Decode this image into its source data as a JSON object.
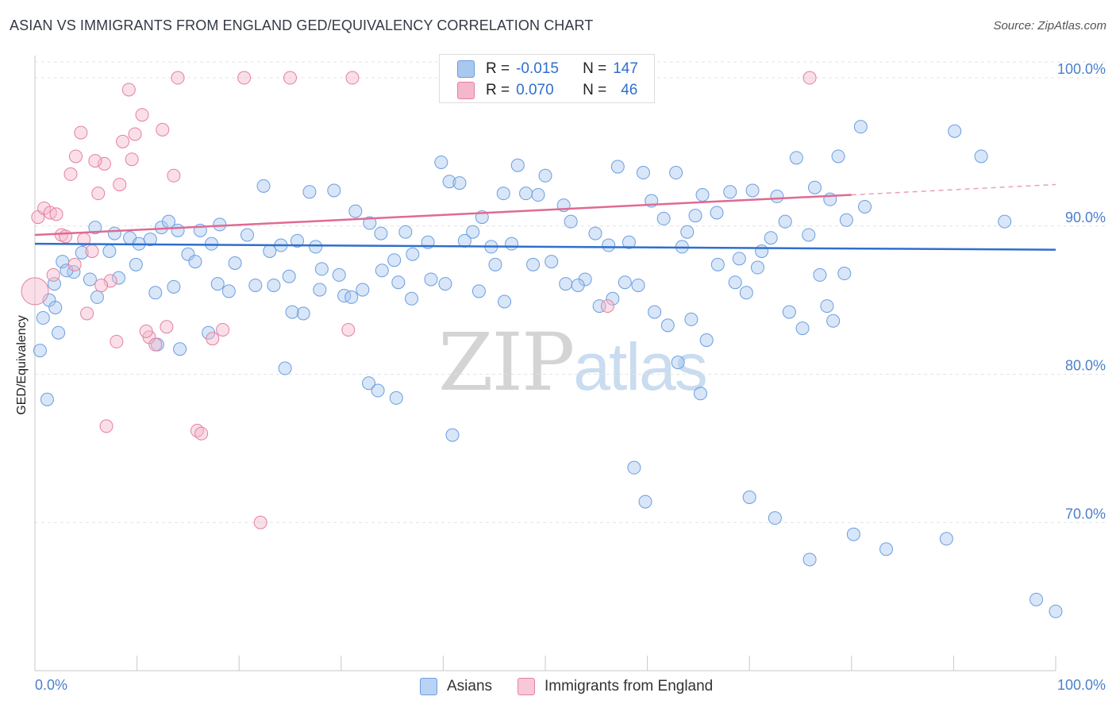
{
  "title": "ASIAN VS IMMIGRANTS FROM ENGLAND GED/EQUIVALENCY CORRELATION CHART",
  "source": "Source: ZipAtlas.com",
  "watermark": {
    "zip": "ZIP",
    "atlas": "atlas"
  },
  "legend": {
    "r_key": "R =",
    "n_key": "N =",
    "rows": [
      {
        "r": "-0.015",
        "n": "147",
        "color": "#a8c8f0",
        "border": "#6a9ee0"
      },
      {
        "r": "0.070",
        "n": "46",
        "color": "#f5b7cb",
        "border": "#e5809f"
      }
    ]
  },
  "bottom_legend": [
    {
      "label": "Asians",
      "color": "#b8d3f3",
      "border": "#6a9ee0"
    },
    {
      "label": "Immigrants from England",
      "color": "#f8c8d8",
      "border": "#e5809f"
    }
  ],
  "chart_data": {
    "type": "scatter",
    "title": "ASIAN VS IMMIGRANTS FROM ENGLAND GED/EQUIVALENCY CORRELATION CHART",
    "xlabel": "",
    "ylabel": "GED/Equivalency",
    "xlim": [
      0,
      100
    ],
    "ylim": [
      60,
      101.5
    ],
    "x_tick_labels": [
      "0.0%",
      "100.0%"
    ],
    "y_ticks": [
      {
        "value": 100,
        "label": "100.0%"
      },
      {
        "value": 90,
        "label": "90.0%"
      },
      {
        "value": 80,
        "label": "80.0%"
      },
      {
        "value": 70,
        "label": "70.0%"
      }
    ],
    "grid": true,
    "series": [
      {
        "name": "Asians",
        "color": "#6a9ee0",
        "fill": "rgba(168,200,240,0.45)",
        "trend": {
          "x0": 0,
          "y0": 88.8,
          "x1": 100,
          "y1": 88.4
        },
        "points": [
          [
            0.5,
            81.6
          ],
          [
            0.8,
            83.8
          ],
          [
            1.4,
            85.0
          ],
          [
            1.9,
            86.1
          ],
          [
            2.7,
            87.6
          ],
          [
            3.8,
            86.9
          ],
          [
            5.4,
            86.4
          ],
          [
            6.1,
            85.2
          ],
          [
            7.3,
            88.3
          ],
          [
            8.2,
            86.5
          ],
          [
            9.3,
            89.2
          ],
          [
            10.2,
            88.8
          ],
          [
            11.3,
            89.1
          ],
          [
            12.4,
            89.9
          ],
          [
            13.1,
            90.3
          ],
          [
            14.0,
            89.7
          ],
          [
            15.0,
            88.1
          ],
          [
            16.2,
            89.7
          ],
          [
            17.3,
            88.8
          ],
          [
            18.1,
            90.1
          ],
          [
            19.6,
            87.5
          ],
          [
            20.8,
            89.4
          ],
          [
            22.4,
            92.7
          ],
          [
            23.4,
            86.0
          ],
          [
            24.1,
            88.7
          ],
          [
            25.7,
            89.0
          ],
          [
            26.9,
            92.3
          ],
          [
            27.5,
            88.6
          ],
          [
            28.1,
            87.1
          ],
          [
            29.3,
            92.4
          ],
          [
            30.3,
            85.3
          ],
          [
            31.4,
            91.0
          ],
          [
            32.8,
            90.2
          ],
          [
            33.9,
            89.5
          ],
          [
            35.2,
            87.7
          ],
          [
            36.3,
            89.6
          ],
          [
            37.0,
            88.1
          ],
          [
            38.5,
            88.9
          ],
          [
            39.8,
            94.3
          ],
          [
            40.6,
            93.0
          ],
          [
            41.6,
            92.9
          ],
          [
            42.9,
            89.6
          ],
          [
            43.8,
            90.6
          ],
          [
            44.7,
            88.6
          ],
          [
            45.9,
            92.2
          ],
          [
            47.3,
            94.1
          ],
          [
            48.1,
            92.2
          ],
          [
            49.3,
            92.1
          ],
          [
            50.0,
            93.4
          ],
          [
            51.8,
            91.4
          ],
          [
            52.5,
            90.3
          ],
          [
            53.9,
            86.4
          ],
          [
            54.9,
            89.5
          ],
          [
            56.2,
            88.7
          ],
          [
            57.1,
            94.0
          ],
          [
            58.2,
            88.9
          ],
          [
            59.6,
            93.6
          ],
          [
            60.4,
            91.7
          ],
          [
            61.6,
            90.5
          ],
          [
            62.8,
            93.6
          ],
          [
            63.9,
            89.6
          ],
          [
            64.7,
            90.7
          ],
          [
            65.4,
            92.1
          ],
          [
            66.8,
            90.9
          ],
          [
            68.1,
            92.3
          ],
          [
            69.0,
            87.8
          ],
          [
            70.3,
            92.4
          ],
          [
            71.2,
            88.3
          ],
          [
            72.7,
            92.0
          ],
          [
            73.5,
            90.3
          ],
          [
            74.6,
            94.6
          ],
          [
            75.8,
            89.4
          ],
          [
            76.4,
            92.6
          ],
          [
            77.9,
            91.8
          ],
          [
            78.7,
            94.7
          ],
          [
            79.5,
            90.4
          ],
          [
            80.9,
            96.7
          ],
          [
            81.3,
            91.3
          ],
          [
            2.0,
            84.5
          ],
          [
            3.1,
            87.0
          ],
          [
            4.6,
            88.2
          ],
          [
            5.9,
            89.9
          ],
          [
            7.8,
            89.5
          ],
          [
            9.9,
            87.4
          ],
          [
            11.8,
            85.5
          ],
          [
            13.6,
            85.9
          ],
          [
            15.7,
            87.6
          ],
          [
            17.9,
            86.1
          ],
          [
            19.0,
            85.6
          ],
          [
            21.6,
            86.0
          ],
          [
            23.0,
            88.3
          ],
          [
            24.9,
            86.6
          ],
          [
            26.3,
            84.1
          ],
          [
            27.9,
            85.7
          ],
          [
            29.8,
            86.7
          ],
          [
            31.0,
            85.2
          ],
          [
            32.1,
            85.7
          ],
          [
            34.0,
            87.0
          ],
          [
            35.6,
            86.2
          ],
          [
            36.9,
            85.1
          ],
          [
            38.8,
            86.4
          ],
          [
            40.2,
            86.1
          ],
          [
            42.1,
            89.0
          ],
          [
            43.5,
            85.6
          ],
          [
            45.1,
            87.4
          ],
          [
            46.7,
            88.8
          ],
          [
            48.8,
            87.4
          ],
          [
            50.6,
            87.6
          ],
          [
            52.0,
            86.1
          ],
          [
            53.2,
            86.0
          ],
          [
            55.3,
            84.6
          ],
          [
            56.6,
            85.1
          ],
          [
            57.8,
            86.2
          ],
          [
            59.1,
            86.0
          ],
          [
            60.7,
            84.2
          ],
          [
            62.0,
            83.3
          ],
          [
            63.4,
            88.6
          ],
          [
            64.3,
            83.7
          ],
          [
            65.8,
            82.3
          ],
          [
            66.9,
            87.4
          ],
          [
            68.6,
            86.2
          ],
          [
            69.7,
            85.5
          ],
          [
            70.8,
            87.2
          ],
          [
            72.1,
            89.2
          ],
          [
            73.9,
            84.2
          ],
          [
            75.2,
            83.1
          ],
          [
            76.9,
            86.7
          ],
          [
            77.6,
            84.6
          ],
          [
            78.2,
            83.6
          ],
          [
            79.3,
            86.8
          ],
          [
            1.2,
            78.3
          ],
          [
            2.3,
            82.8
          ],
          [
            12.0,
            82.0
          ],
          [
            14.2,
            81.7
          ],
          [
            17.0,
            82.8
          ],
          [
            24.5,
            80.4
          ],
          [
            25.2,
            84.2
          ],
          [
            32.7,
            79.4
          ],
          [
            33.6,
            78.9
          ],
          [
            35.4,
            78.4
          ],
          [
            40.9,
            75.9
          ],
          [
            46.0,
            84.9
          ],
          [
            58.7,
            73.7
          ],
          [
            59.8,
            71.4
          ],
          [
            63.0,
            80.8
          ],
          [
            65.2,
            78.7
          ],
          [
            70.0,
            71.7
          ],
          [
            72.5,
            70.3
          ],
          [
            75.9,
            67.5
          ],
          [
            80.2,
            69.2
          ],
          [
            83.4,
            68.2
          ],
          [
            89.3,
            68.9
          ],
          [
            90.1,
            96.4
          ],
          [
            92.7,
            94.7
          ],
          [
            95.0,
            90.3
          ],
          [
            98.1,
            64.8
          ],
          [
            100.0,
            64.0
          ]
        ]
      },
      {
        "name": "Immigrants from England",
        "color": "#e5809f",
        "fill": "rgba(245,183,203,0.45)",
        "trend": {
          "x0": 0,
          "y0": 89.4,
          "x1": 80,
          "y1": 92.1
        },
        "trend_dashed": {
          "x0": 80,
          "y0": 92.1,
          "x1": 100,
          "y1": 92.8
        },
        "points": [
          [
            0.0,
            85.6
          ],
          [
            0.3,
            90.6
          ],
          [
            0.9,
            91.2
          ],
          [
            1.5,
            90.9
          ],
          [
            2.1,
            90.8
          ],
          [
            2.6,
            89.4
          ],
          [
            3.0,
            89.3
          ],
          [
            3.5,
            93.5
          ],
          [
            4.0,
            94.7
          ],
          [
            4.5,
            96.3
          ],
          [
            5.1,
            84.1
          ],
          [
            5.6,
            88.3
          ],
          [
            6.2,
            92.2
          ],
          [
            6.8,
            94.2
          ],
          [
            7.4,
            86.3
          ],
          [
            8.0,
            82.2
          ],
          [
            8.6,
            95.7
          ],
          [
            9.2,
            99.2
          ],
          [
            9.8,
            96.2
          ],
          [
            10.5,
            97.5
          ],
          [
            11.2,
            82.5
          ],
          [
            11.8,
            82.0
          ],
          [
            12.5,
            96.5
          ],
          [
            13.6,
            93.4
          ],
          [
            14.0,
            100.0
          ],
          [
            15.9,
            76.2
          ],
          [
            17.4,
            82.4
          ],
          [
            18.4,
            83.0
          ],
          [
            20.5,
            100.0
          ],
          [
            22.1,
            70.0
          ],
          [
            25.0,
            100.0
          ],
          [
            30.7,
            83.0
          ],
          [
            31.1,
            100.0
          ],
          [
            56.1,
            84.6
          ],
          [
            75.9,
            100.0
          ],
          [
            1.8,
            86.7
          ],
          [
            3.9,
            87.4
          ],
          [
            4.8,
            89.1
          ],
          [
            5.9,
            94.4
          ],
          [
            6.5,
            86.0
          ],
          [
            7.0,
            76.5
          ],
          [
            8.3,
            92.8
          ],
          [
            9.5,
            94.5
          ],
          [
            10.9,
            82.9
          ],
          [
            12.9,
            83.2
          ],
          [
            16.3,
            76.0
          ]
        ]
      }
    ]
  }
}
